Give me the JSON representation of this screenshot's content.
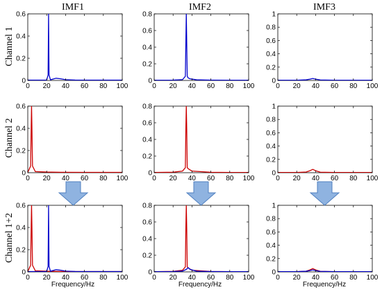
{
  "columns": [
    "IMF1",
    "IMF2",
    "IMF3"
  ],
  "rows": [
    "Channel 1",
    "Channel 2",
    "Channel 1+2"
  ],
  "xlabel": "Frequency/Hz",
  "colors": {
    "channel1": "#0000cc",
    "channel2": "#cc0000",
    "arrow_fill": "#8fb3e0",
    "arrow_stroke": "#4f7fbf"
  },
  "chart_data": [
    {
      "id": "r0c0",
      "type": "line",
      "row": "Channel 1",
      "column": "IMF1",
      "xlim": [
        0,
        100
      ],
      "ylim": [
        0,
        0.6
      ],
      "xticks": [
        0,
        20,
        40,
        60,
        80,
        100
      ],
      "yticks": [
        0,
        0.2,
        0.4,
        0.6
      ],
      "ytick_labels": [
        "0",
        "0.2",
        "0.4",
        "0.6"
      ],
      "series": [
        {
          "x": [
            0,
            20,
            21.5,
            22,
            22.5,
            24,
            30,
            35,
            40,
            50,
            60,
            80,
            100
          ],
          "y": [
            0.003,
            0.004,
            0.05,
            0.6,
            0.05,
            0.006,
            0.02,
            0.015,
            0.007,
            0.004,
            0.003,
            0.003,
            0.003
          ],
          "color": "#0000cc"
        }
      ]
    },
    {
      "id": "r0c1",
      "type": "line",
      "row": "Channel 1",
      "column": "IMF2",
      "xlim": [
        0,
        100
      ],
      "ylim": [
        0,
        0.8
      ],
      "xticks": [
        0,
        20,
        40,
        60,
        80,
        100
      ],
      "yticks": [
        0,
        0.2,
        0.4,
        0.6,
        0.8
      ],
      "ytick_labels": [
        "0",
        "0.2",
        "0.4",
        "0.6",
        "0.8"
      ],
      "series": [
        {
          "x": [
            0,
            20,
            30,
            33,
            34,
            35,
            36,
            38,
            45,
            60,
            80,
            100
          ],
          "y": [
            0.003,
            0.004,
            0.01,
            0.05,
            0.8,
            0.05,
            0.03,
            0.02,
            0.008,
            0.004,
            0.003,
            0.003
          ],
          "color": "#0000cc"
        }
      ]
    },
    {
      "id": "r0c2",
      "type": "line",
      "row": "Channel 1",
      "column": "IMF3",
      "xlim": [
        0,
        100
      ],
      "ylim": [
        0,
        1
      ],
      "xticks": [
        0,
        20,
        40,
        60,
        80,
        100
      ],
      "yticks": [
        0,
        0.2,
        0.4,
        0.6,
        0.8,
        1
      ],
      "ytick_labels": [
        "0",
        "0.2",
        "0.4",
        "0.6",
        "0.8",
        "1"
      ],
      "series": [
        {
          "x": [
            0,
            20,
            30,
            34,
            37,
            40,
            45,
            60,
            80,
            100
          ],
          "y": [
            0.003,
            0.004,
            0.01,
            0.02,
            0.03,
            0.02,
            0.008,
            0.004,
            0.003,
            0.003
          ],
          "color": "#0000cc"
        }
      ]
    },
    {
      "id": "r1c0",
      "type": "line",
      "row": "Channel 2",
      "column": "IMF1",
      "xlim": [
        0,
        100
      ],
      "ylim": [
        0,
        0.6
      ],
      "xticks": [
        0,
        20,
        40,
        60,
        80,
        100
      ],
      "yticks": [
        0,
        0.2,
        0.4,
        0.6
      ],
      "ytick_labels": [
        "0",
        "0.2",
        "0.4",
        "0.6"
      ],
      "series": [
        {
          "x": [
            0,
            3,
            3.5,
            4,
            4.5,
            5,
            8,
            20,
            35,
            60,
            100
          ],
          "y": [
            0.003,
            0.06,
            0.35,
            0.6,
            0.35,
            0.06,
            0.01,
            0.006,
            0.004,
            0.003,
            0.003
          ],
          "color": "#cc0000"
        }
      ]
    },
    {
      "id": "r1c1",
      "type": "line",
      "row": "Channel 2",
      "column": "IMF2",
      "xlim": [
        0,
        100
      ],
      "ylim": [
        0,
        0.8
      ],
      "xticks": [
        0,
        20,
        40,
        60,
        80,
        100
      ],
      "yticks": [
        0,
        0.2,
        0.4,
        0.6,
        0.8
      ],
      "ytick_labels": [
        "0",
        "0.2",
        "0.4",
        "0.6",
        "0.8"
      ],
      "series": [
        {
          "x": [
            0,
            20,
            30,
            33,
            33.5,
            34,
            34.5,
            35,
            37,
            40,
            60,
            80,
            100
          ],
          "y": [
            0.003,
            0.006,
            0.02,
            0.06,
            0.5,
            0.8,
            0.5,
            0.06,
            0.04,
            0.02,
            0.005,
            0.003,
            0.003
          ],
          "color": "#cc0000"
        }
      ]
    },
    {
      "id": "r1c2",
      "type": "line",
      "row": "Channel 2",
      "column": "IMF3",
      "xlim": [
        0,
        100
      ],
      "ylim": [
        0,
        1
      ],
      "xticks": [
        0,
        20,
        40,
        60,
        80,
        100
      ],
      "yticks": [
        0,
        0.2,
        0.4,
        0.6,
        0.8,
        1
      ],
      "ytick_labels": [
        "0",
        "0.2",
        "0.4",
        "0.6",
        "0.8",
        "1"
      ],
      "series": [
        {
          "x": [
            0,
            20,
            30,
            34,
            37,
            40,
            45,
            60,
            80,
            100
          ],
          "y": [
            0.003,
            0.004,
            0.01,
            0.03,
            0.05,
            0.03,
            0.008,
            0.004,
            0.003,
            0.003
          ],
          "color": "#cc0000"
        }
      ]
    },
    {
      "id": "r2c0",
      "type": "line",
      "row": "Channel 1+2",
      "column": "IMF1",
      "xlim": [
        0,
        100
      ],
      "ylim": [
        0,
        0.6
      ],
      "xticks": [
        0,
        20,
        40,
        60,
        80,
        100
      ],
      "yticks": [
        0,
        0.2,
        0.4,
        0.6
      ],
      "ytick_labels": [
        "0",
        "0.2",
        "0.4",
        "0.6"
      ],
      "series": [
        {
          "x": [
            0,
            3,
            3.5,
            4,
            4.5,
            5,
            8,
            20,
            35,
            60,
            100
          ],
          "y": [
            0.003,
            0.06,
            0.35,
            0.6,
            0.35,
            0.06,
            0.01,
            0.006,
            0.004,
            0.003,
            0.003
          ],
          "color": "#cc0000"
        },
        {
          "x": [
            0,
            20,
            21.5,
            22,
            22.5,
            24,
            30,
            35,
            40,
            50,
            60,
            80,
            100
          ],
          "y": [
            0.003,
            0.004,
            0.05,
            0.6,
            0.05,
            0.006,
            0.02,
            0.015,
            0.007,
            0.004,
            0.003,
            0.003,
            0.003
          ],
          "color": "#0000cc"
        }
      ]
    },
    {
      "id": "r2c1",
      "type": "line",
      "row": "Channel 1+2",
      "column": "IMF2",
      "xlim": [
        0,
        100
      ],
      "ylim": [
        0,
        0.8
      ],
      "xticks": [
        0,
        20,
        40,
        60,
        80,
        100
      ],
      "yticks": [
        0,
        0.2,
        0.4,
        0.6,
        0.8
      ],
      "ytick_labels": [
        "0",
        "0.2",
        "0.4",
        "0.6",
        "0.8"
      ],
      "series": [
        {
          "x": [
            0,
            20,
            30,
            33,
            33.5,
            34,
            34.5,
            35,
            37,
            40,
            60,
            80,
            100
          ],
          "y": [
            0.003,
            0.006,
            0.02,
            0.06,
            0.5,
            0.8,
            0.5,
            0.06,
            0.04,
            0.02,
            0.005,
            0.003,
            0.003
          ],
          "color": "#cc0000"
        },
        {
          "x": [
            0,
            20,
            30,
            34,
            36,
            38,
            45,
            60,
            80,
            100
          ],
          "y": [
            0.003,
            0.004,
            0.01,
            0.03,
            0.05,
            0.03,
            0.008,
            0.004,
            0.003,
            0.003
          ],
          "color": "#0000cc"
        }
      ]
    },
    {
      "id": "r2c2",
      "type": "line",
      "row": "Channel 1+2",
      "column": "IMF3",
      "xlim": [
        0,
        100
      ],
      "ylim": [
        0,
        1
      ],
      "xticks": [
        0,
        20,
        40,
        60,
        80,
        100
      ],
      "yticks": [
        0,
        0.2,
        0.4,
        0.6,
        0.8,
        1
      ],
      "ytick_labels": [
        "0",
        "0.2",
        "0.4",
        "0.6",
        "0.8",
        "1"
      ],
      "series": [
        {
          "x": [
            0,
            20,
            30,
            34,
            37,
            40,
            45,
            60,
            80,
            100
          ],
          "y": [
            0.003,
            0.004,
            0.01,
            0.03,
            0.05,
            0.03,
            0.008,
            0.004,
            0.003,
            0.003
          ],
          "color": "#cc0000"
        },
        {
          "x": [
            0,
            20,
            30,
            34,
            37,
            40,
            45,
            60,
            80,
            100
          ],
          "y": [
            0.003,
            0.004,
            0.01,
            0.02,
            0.03,
            0.02,
            0.008,
            0.004,
            0.003,
            0.003
          ],
          "color": "#0000cc"
        }
      ]
    }
  ]
}
